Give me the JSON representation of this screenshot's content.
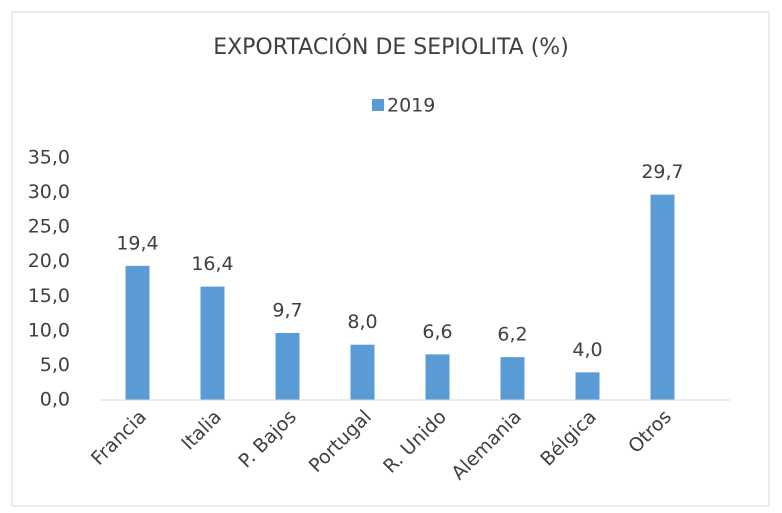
{
  "chart_data": {
    "type": "bar",
    "title": "EXPORTACIÓN DE SEPIOLITA (%)",
    "categories": [
      "Francia",
      "Italia",
      "P. Bajos",
      "Portugal",
      "R. Unido",
      "Alemania",
      "Bélgica",
      "Otros"
    ],
    "series": [
      {
        "name": "2019",
        "color": "#5b9bd5",
        "values": [
          19.4,
          16.4,
          9.7,
          8.0,
          6.6,
          6.2,
          4.0,
          29.7
        ],
        "value_labels": [
          "19,4",
          "16,4",
          "9,7",
          "8,0",
          "6,6",
          "6,2",
          "4,0",
          "29,7"
        ]
      }
    ],
    "ylim": [
      0,
      35
    ],
    "yticks": [
      {
        "value": 0,
        "label": "0,0"
      },
      {
        "value": 5,
        "label": "5,0"
      },
      {
        "value": 10,
        "label": "10,0"
      },
      {
        "value": 15,
        "label": "15,0"
      },
      {
        "value": 20,
        "label": "20,0"
      },
      {
        "value": 25,
        "label": "25,0"
      },
      {
        "value": 30,
        "label": "30,0"
      },
      {
        "value": 35,
        "label": "35,0"
      }
    ],
    "grid": false,
    "legend": "top"
  }
}
